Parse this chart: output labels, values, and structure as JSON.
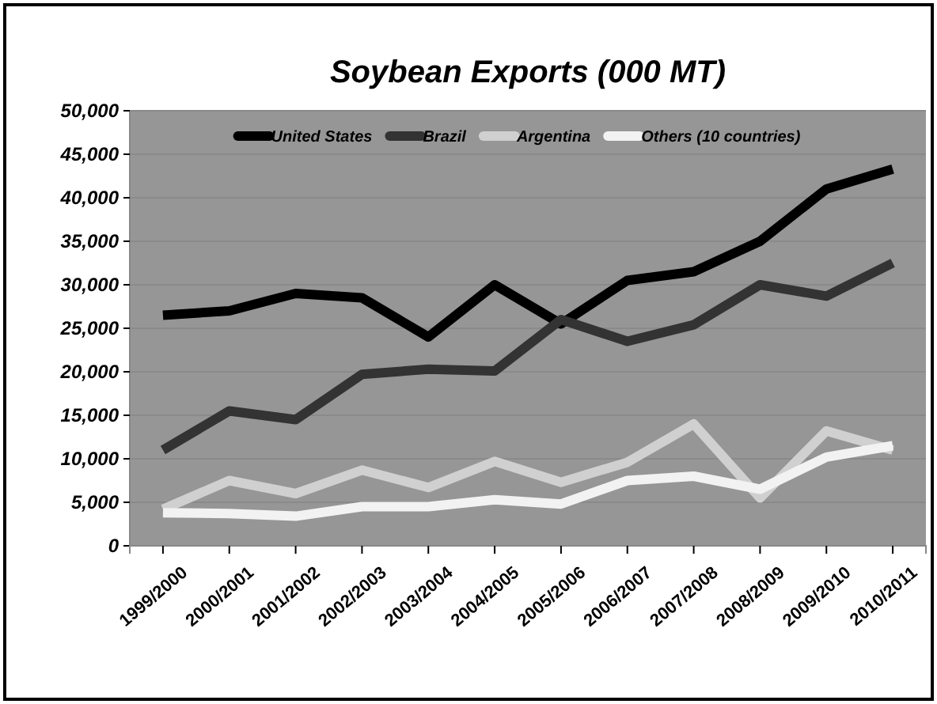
{
  "chart_data": {
    "type": "line",
    "title": "Soybean Exports (000 MT)",
    "categories": [
      "1999/2000",
      "2000/2001",
      "2001/2002",
      "2002/2003",
      "2003/2004",
      "2004/2005",
      "2005/2006",
      "2006/2007",
      "2007/2008",
      "2008/2009",
      "2009/2010",
      "2010/2011"
    ],
    "series": [
      {
        "name": "United States",
        "color": "#000000",
        "values": [
          26500,
          27000,
          29000,
          28500,
          24000,
          30000,
          25500,
          30500,
          31500,
          35000,
          41000,
          43300
        ]
      },
      {
        "name": "Brazil",
        "color": "#333333",
        "values": [
          11000,
          15500,
          14500,
          19700,
          20300,
          20100,
          26000,
          23500,
          25400,
          30000,
          28700,
          32500
        ]
      },
      {
        "name": "Argentina",
        "color": "#d0d0d0",
        "values": [
          4200,
          7500,
          6000,
          8700,
          6700,
          9700,
          7300,
          9600,
          14000,
          5500,
          13200,
          11000
        ]
      },
      {
        "name": "Others (10 countries)",
        "color": "#f2f2f2",
        "values": [
          3800,
          3700,
          3400,
          4500,
          4500,
          5300,
          4800,
          7500,
          8000,
          6500,
          10200,
          11500
        ]
      }
    ],
    "ylim": [
      0,
      50000
    ],
    "yticks": [
      {
        "value": 0,
        "label": "0"
      },
      {
        "value": 5000,
        "label": "5,000"
      },
      {
        "value": 10000,
        "label": "10,000"
      },
      {
        "value": 15000,
        "label": "15,000"
      },
      {
        "value": 20000,
        "label": "20,000"
      },
      {
        "value": 25000,
        "label": "25,000"
      },
      {
        "value": 30000,
        "label": "30,000"
      },
      {
        "value": 35000,
        "label": "35,000"
      },
      {
        "value": 40000,
        "label": "40,000"
      },
      {
        "value": 45000,
        "label": "45,000"
      },
      {
        "value": 50000,
        "label": "50,000"
      }
    ],
    "grid": "y",
    "legend": "top",
    "marker": "none",
    "line_style": "solid"
  }
}
